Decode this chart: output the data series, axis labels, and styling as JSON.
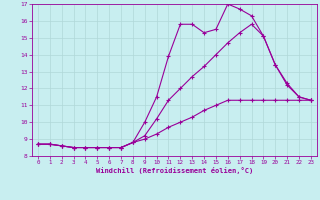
{
  "xlabel": "Windchill (Refroidissement éolien,°C)",
  "bg_color": "#c8eef0",
  "line_color": "#990099",
  "grid_color": "#b0d8d8",
  "xlim": [
    -0.5,
    23.5
  ],
  "ylim": [
    8,
    17
  ],
  "xticks": [
    0,
    1,
    2,
    3,
    4,
    5,
    6,
    7,
    8,
    9,
    10,
    11,
    12,
    13,
    14,
    15,
    16,
    17,
    18,
    19,
    20,
    21,
    22,
    23
  ],
  "yticks": [
    8,
    9,
    10,
    11,
    12,
    13,
    14,
    15,
    16,
    17
  ],
  "curve1_x": [
    0,
    1,
    2,
    3,
    4,
    5,
    6,
    7,
    8,
    9,
    10,
    11,
    12,
    13,
    14,
    15,
    16,
    17,
    18,
    19,
    20,
    21,
    22,
    23
  ],
  "curve1_y": [
    8.7,
    8.7,
    8.6,
    8.5,
    8.5,
    8.5,
    8.5,
    8.5,
    8.8,
    10.0,
    11.5,
    13.9,
    15.8,
    15.8,
    15.3,
    15.5,
    17.0,
    16.7,
    16.3,
    15.1,
    13.4,
    12.3,
    11.5,
    11.3
  ],
  "curve2_x": [
    0,
    1,
    2,
    3,
    4,
    5,
    6,
    7,
    8,
    9,
    10,
    11,
    12,
    13,
    14,
    15,
    16,
    17,
    18,
    19,
    20,
    21,
    22,
    23
  ],
  "curve2_y": [
    8.7,
    8.7,
    8.6,
    8.5,
    8.5,
    8.5,
    8.5,
    8.5,
    8.8,
    9.2,
    10.2,
    11.3,
    12.0,
    12.7,
    13.3,
    14.0,
    14.7,
    15.3,
    15.8,
    15.1,
    13.4,
    12.2,
    11.5,
    11.3
  ],
  "curve3_x": [
    0,
    1,
    2,
    3,
    4,
    5,
    6,
    7,
    8,
    9,
    10,
    11,
    12,
    13,
    14,
    15,
    16,
    17,
    18,
    19,
    20,
    21,
    22,
    23
  ],
  "curve3_y": [
    8.7,
    8.7,
    8.6,
    8.5,
    8.5,
    8.5,
    8.5,
    8.5,
    8.8,
    9.0,
    9.3,
    9.7,
    10.0,
    10.3,
    10.7,
    11.0,
    11.3,
    11.3,
    11.3,
    11.3,
    11.3,
    11.3,
    11.3,
    11.3
  ]
}
